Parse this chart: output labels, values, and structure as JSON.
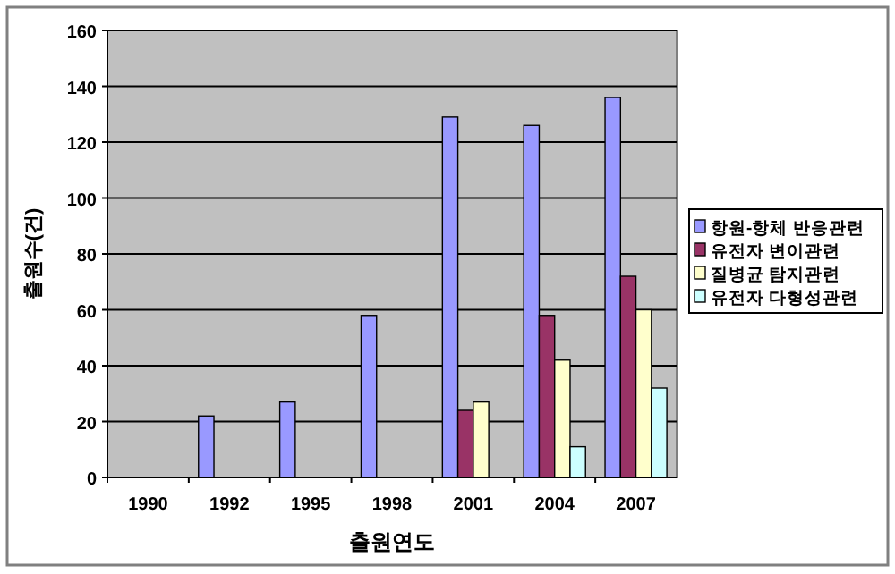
{
  "chart_data": {
    "type": "bar",
    "xlabel": "출원연도",
    "ylabel": "출원수(건)",
    "categories": [
      "1990",
      "1992",
      "1995",
      "1998",
      "2001",
      "2004",
      "2007"
    ],
    "series": [
      {
        "name": "항원-항체 반응관련",
        "color": "#9999ff",
        "values": [
          null,
          22,
          27,
          58,
          129,
          126,
          136
        ]
      },
      {
        "name": "유전자 변이관련",
        "color": "#993366",
        "values": [
          null,
          null,
          null,
          null,
          24,
          58,
          72
        ]
      },
      {
        "name": "질병균 탐지관련",
        "color": "#ffffcc",
        "values": [
          null,
          null,
          null,
          null,
          27,
          42,
          60
        ]
      },
      {
        "name": "유전자 다형성관련",
        "color": "#ccffff",
        "values": [
          null,
          null,
          null,
          null,
          null,
          11,
          32
        ]
      }
    ],
    "ylim": [
      0,
      160
    ],
    "yticks": [
      0,
      20,
      40,
      60,
      80,
      100,
      120,
      140,
      160
    ],
    "grid": "y",
    "legend": "right"
  }
}
